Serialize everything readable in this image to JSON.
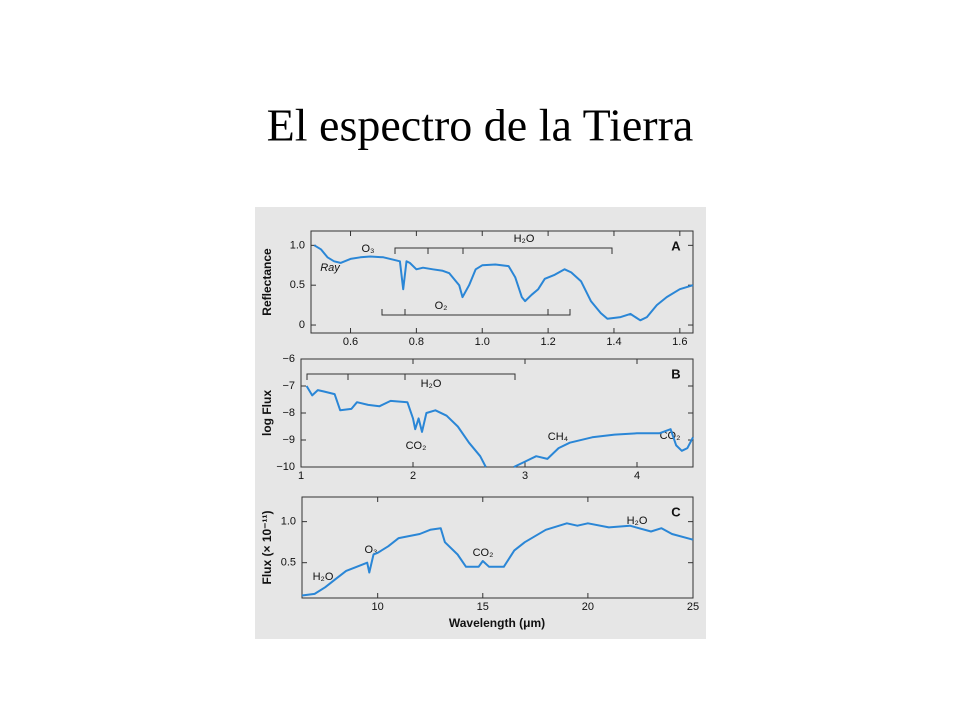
{
  "title": "El espectro de la Tierra",
  "xlabel": "Wavelength (μm)",
  "chart_data": [
    {
      "type": "line",
      "panel_label": "A",
      "ylabel": "Reflectance",
      "color": "#2a86d6",
      "xlim": [
        0.48,
        1.64
      ],
      "ylim": [
        -0.1,
        1.18
      ],
      "xticks": [
        0.6,
        0.8,
        {
          "value": 1,
          "label": "1.0"
        },
        1.2,
        1.4,
        1.6
      ],
      "yticks": [
        0,
        0.5,
        {
          "value": 1,
          "label": "1.0"
        }
      ],
      "annotations": [
        "O₃",
        "Ray",
        "H₂O",
        "O₂"
      ],
      "x": [
        0.49,
        0.51,
        0.53,
        0.55,
        0.57,
        0.6,
        0.63,
        0.66,
        0.7,
        0.73,
        0.75,
        0.76,
        0.77,
        0.78,
        0.8,
        0.82,
        0.85,
        0.88,
        0.9,
        0.93,
        0.94,
        0.96,
        0.98,
        1.0,
        1.04,
        1.08,
        1.1,
        1.12,
        1.13,
        1.15,
        1.17,
        1.19,
        1.22,
        1.25,
        1.27,
        1.3,
        1.33,
        1.36,
        1.38,
        1.42,
        1.45,
        1.48,
        1.5,
        1.53,
        1.56,
        1.6,
        1.64
      ],
      "values": [
        1.0,
        0.95,
        0.85,
        0.8,
        0.78,
        0.83,
        0.85,
        0.86,
        0.85,
        0.82,
        0.8,
        0.45,
        0.8,
        0.78,
        0.7,
        0.72,
        0.7,
        0.68,
        0.65,
        0.5,
        0.35,
        0.5,
        0.7,
        0.75,
        0.76,
        0.74,
        0.6,
        0.35,
        0.3,
        0.38,
        0.45,
        0.58,
        0.63,
        0.7,
        0.66,
        0.55,
        0.3,
        0.15,
        0.08,
        0.1,
        0.14,
        0.06,
        0.1,
        0.25,
        0.35,
        0.45,
        0.5
      ]
    },
    {
      "type": "line",
      "panel_label": "B",
      "ylabel": "log Flux",
      "color": "#2a86d6",
      "xlim": [
        1,
        4.5
      ],
      "ylim": [
        -10,
        -6
      ],
      "xticks": [
        1,
        2,
        3,
        4
      ],
      "yticks": [
        {
          "value": -10,
          "label": "−10"
        },
        {
          "value": -9,
          "label": "−9"
        },
        {
          "value": -8,
          "label": "−8"
        },
        {
          "value": -7,
          "label": "−7"
        },
        {
          "value": -6,
          "label": "−6"
        }
      ],
      "annotations": [
        "H₂O",
        "CO₂",
        "CH₄",
        "CO₂"
      ],
      "x": [
        1.05,
        1.1,
        1.15,
        1.2,
        1.3,
        1.35,
        1.45,
        1.5,
        1.6,
        1.7,
        1.8,
        1.95,
        2.0,
        2.02,
        2.05,
        2.08,
        2.12,
        2.2,
        2.3,
        2.4,
        2.5,
        2.6,
        2.65,
        2.75,
        2.9,
        3.0,
        3.1,
        3.2,
        3.3,
        3.4,
        3.6,
        3.8,
        4.0,
        4.2,
        4.3,
        4.35,
        4.4,
        4.45,
        4.5
      ],
      "values": [
        -7.0,
        -7.35,
        -7.15,
        -7.2,
        -7.3,
        -7.9,
        -7.85,
        -7.6,
        -7.7,
        -7.75,
        -7.55,
        -7.6,
        -8.2,
        -8.6,
        -8.2,
        -8.7,
        -8.0,
        -7.9,
        -8.1,
        -8.5,
        -9.1,
        -9.6,
        -10.0,
        null,
        -10.0,
        -9.8,
        -9.6,
        -9.7,
        -9.3,
        -9.1,
        -8.9,
        -8.8,
        -8.75,
        -8.75,
        -8.6,
        -9.2,
        -9.4,
        -9.3,
        -8.9
      ]
    },
    {
      "type": "line",
      "panel_label": "C",
      "ylabel": "Flux (× 10⁻¹¹)",
      "color": "#2a86d6",
      "xlim": [
        6.4,
        25
      ],
      "ylim": [
        0.07,
        1.3
      ],
      "xticks": [
        10,
        15,
        20,
        25
      ],
      "yticks": [
        0.5,
        {
          "value": 1,
          "label": "1.0"
        }
      ],
      "annotations": [
        "H₂O",
        "O₃",
        "CO₂",
        "H₂O"
      ],
      "x": [
        6.4,
        7,
        7.5,
        8,
        8.5,
        9,
        9.5,
        9.6,
        9.8,
        10,
        10.5,
        11,
        12,
        12.5,
        13,
        13.2,
        13.8,
        14.2,
        14.8,
        15,
        15.3,
        16,
        16.5,
        17,
        18,
        19,
        19.5,
        20,
        21,
        22,
        23,
        23.5,
        24,
        25
      ],
      "values": [
        0.1,
        0.12,
        0.2,
        0.3,
        0.4,
        0.45,
        0.5,
        0.38,
        0.6,
        0.62,
        0.7,
        0.8,
        0.85,
        0.9,
        0.92,
        0.75,
        0.6,
        0.45,
        0.45,
        0.52,
        0.45,
        0.45,
        0.65,
        0.75,
        0.9,
        0.98,
        0.95,
        0.98,
        0.93,
        0.95,
        0.88,
        0.92,
        0.85,
        0.78
      ]
    }
  ]
}
